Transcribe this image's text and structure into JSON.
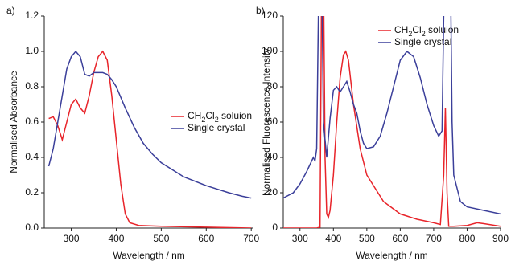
{
  "chart_data": [
    {
      "type": "line",
      "panel": "a)",
      "xlabel": "Wavelength / nm",
      "ylabel": "Normalised Absorbance",
      "xlim": [
        240,
        705
      ],
      "xticks": [
        300,
        400,
        500,
        600,
        700
      ],
      "ylim": [
        0,
        1.2
      ],
      "yticks": [
        {
          "value": 0,
          "label": "0.0"
        },
        0.2,
        0.4,
        0.6,
        0.8,
        {
          "value": 1,
          "label": "1.0"
        },
        1.2
      ],
      "series": [
        {
          "name": "CH2Cl2 soluion",
          "color": "#e8242a",
          "x": [
            250,
            260,
            270,
            280,
            290,
            300,
            310,
            320,
            330,
            340,
            350,
            360,
            370,
            380,
            390,
            400,
            410,
            420,
            430,
            450,
            500,
            600,
            700
          ],
          "values": [
            0.62,
            0.63,
            0.58,
            0.5,
            0.6,
            0.7,
            0.73,
            0.68,
            0.65,
            0.75,
            0.88,
            0.97,
            1.0,
            0.95,
            0.75,
            0.5,
            0.25,
            0.08,
            0.03,
            0.015,
            0.01,
            0.005,
            0.0
          ]
        },
        {
          "name": "Single crystal",
          "color": "#3b3f9a",
          "x": [
            250,
            260,
            270,
            280,
            290,
            300,
            310,
            320,
            330,
            340,
            350,
            360,
            370,
            380,
            390,
            400,
            420,
            440,
            460,
            480,
            500,
            550,
            600,
            650,
            680,
            700
          ],
          "values": [
            0.35,
            0.45,
            0.6,
            0.75,
            0.9,
            0.97,
            1.0,
            0.97,
            0.87,
            0.86,
            0.88,
            0.88,
            0.88,
            0.87,
            0.84,
            0.8,
            0.68,
            0.57,
            0.48,
            0.42,
            0.37,
            0.29,
            0.24,
            0.2,
            0.18,
            0.17
          ]
        }
      ],
      "legend": "right"
    },
    {
      "type": "line",
      "panel": "b)",
      "xlabel": "Wavelength / nm",
      "ylabel": "Normalised Fluorescence Intensity",
      "xlim": [
        250,
        900
      ],
      "xticks": [
        300,
        400,
        500,
        600,
        700,
        800,
        900
      ],
      "ylim": [
        0,
        120
      ],
      "yticks": [
        0,
        20,
        40,
        60,
        80,
        100,
        120
      ],
      "series": [
        {
          "name": "CH2Cl2 soluion",
          "color": "#e8242a",
          "x": [
            250,
            350,
            360,
            365,
            370,
            375,
            380,
            385,
            390,
            400,
            410,
            420,
            430,
            437,
            445,
            460,
            480,
            500,
            550,
            600,
            650,
            700,
            720,
            730,
            735,
            740,
            745,
            760,
            800,
            830,
            850,
            900
          ],
          "values": [
            0,
            0,
            0.5,
            150,
            150,
            40,
            8,
            6,
            10,
            30,
            60,
            85,
            98,
            100,
            95,
            70,
            45,
            30,
            15,
            8,
            5,
            3,
            2,
            30,
            68,
            20,
            1,
            1,
            1.5,
            3,
            2.5,
            1
          ]
        },
        {
          "name": "Single crystal",
          "color": "#3b3f9a",
          "x": [
            250,
            280,
            300,
            320,
            340,
            345,
            350,
            355,
            360,
            365,
            370,
            380,
            390,
            400,
            410,
            420,
            430,
            440,
            450,
            460,
            470,
            480,
            490,
            500,
            520,
            540,
            560,
            580,
            600,
            620,
            640,
            660,
            680,
            700,
            715,
            725,
            730,
            740,
            750,
            755,
            760,
            780,
            800,
            850,
            900
          ],
          "values": [
            17,
            20,
            25,
            32,
            40,
            38,
            45,
            120,
            150,
            150,
            60,
            40,
            62,
            78,
            80,
            77,
            80,
            83,
            77,
            70,
            65,
            55,
            48,
            45,
            46,
            52,
            65,
            80,
            95,
            100,
            97,
            85,
            70,
            58,
            52,
            55,
            120,
            150,
            150,
            60,
            30,
            15,
            12,
            10,
            8
          ]
        }
      ],
      "legend": "upper right"
    }
  ]
}
